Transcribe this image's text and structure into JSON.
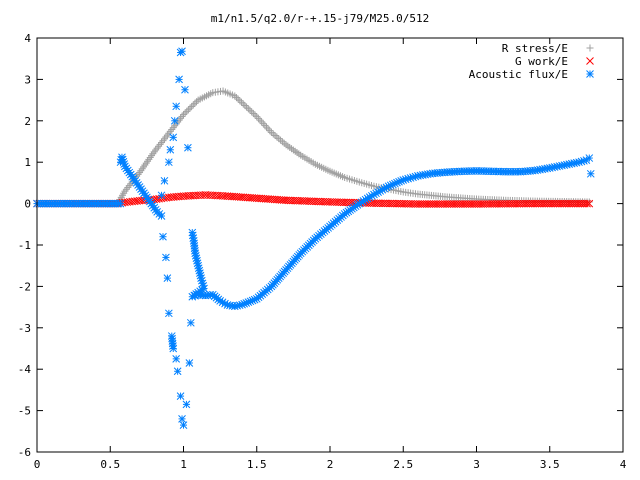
{
  "chart_data": {
    "type": "scatter",
    "title": "m1/n1.5/q2.0/r-+.15-j79/M25.0/512",
    "xlabel": "",
    "ylabel": "",
    "xlim": [
      0,
      4
    ],
    "ylim": [
      -6,
      4
    ],
    "xticks": [
      "0",
      "0.5",
      "1",
      "1.5",
      "2",
      "2.5",
      "3",
      "3.5",
      "4"
    ],
    "yticks": [
      "4",
      "3",
      "2",
      "1",
      "0",
      "-1",
      "-2",
      "-3",
      "-4",
      "-5",
      "-6"
    ],
    "grid": false,
    "legend_position": "top-right",
    "series": [
      {
        "name": "R stress/E",
        "marker": "plus",
        "color": "#a0a0a0",
        "points": [
          [
            0,
            0
          ],
          [
            0.55,
            0
          ],
          [
            0.6,
            0.3
          ],
          [
            0.7,
            0.75
          ],
          [
            0.8,
            1.25
          ],
          [
            0.9,
            1.7
          ],
          [
            1.0,
            2.15
          ],
          [
            1.1,
            2.5
          ],
          [
            1.2,
            2.68
          ],
          [
            1.27,
            2.72
          ],
          [
            1.35,
            2.6
          ],
          [
            1.5,
            2.1
          ],
          [
            1.6,
            1.72
          ],
          [
            1.7,
            1.42
          ],
          [
            1.8,
            1.17
          ],
          [
            1.9,
            0.95
          ],
          [
            2.0,
            0.78
          ],
          [
            2.1,
            0.63
          ],
          [
            2.2,
            0.52
          ],
          [
            2.3,
            0.42
          ],
          [
            2.4,
            0.35
          ],
          [
            2.5,
            0.28
          ],
          [
            2.6,
            0.23
          ],
          [
            2.8,
            0.16
          ],
          [
            3.0,
            0.11
          ],
          [
            3.2,
            0.08
          ],
          [
            3.4,
            0.06
          ],
          [
            3.6,
            0.05
          ],
          [
            3.77,
            0.04
          ]
        ]
      },
      {
        "name": "G work/E",
        "marker": "cross",
        "color": "#ff0000",
        "points": [
          [
            0,
            0
          ],
          [
            0.55,
            0
          ],
          [
            0.6,
            0.03
          ],
          [
            0.7,
            0.07
          ],
          [
            0.8,
            0.1
          ],
          [
            0.9,
            0.15
          ],
          [
            1.0,
            0.18
          ],
          [
            1.1,
            0.2
          ],
          [
            1.15,
            0.21
          ],
          [
            1.2,
            0.2
          ],
          [
            1.3,
            0.18
          ],
          [
            1.5,
            0.13
          ],
          [
            1.7,
            0.08
          ],
          [
            2.0,
            0.04
          ],
          [
            2.3,
            0.01
          ],
          [
            2.6,
            -0.01
          ],
          [
            3.0,
            -0.01
          ],
          [
            3.4,
            0.0
          ],
          [
            3.77,
            0.0
          ]
        ]
      },
      {
        "name": "Acoustic flux/E",
        "marker": "star",
        "color": "#0080ff",
        "points": [
          [
            0,
            0
          ],
          [
            0.57,
            0
          ],
          [
            0.57,
            1.0
          ],
          [
            0.58,
            1.12
          ],
          [
            0.6,
            0.9
          ],
          [
            0.62,
            0.8
          ],
          [
            0.66,
            0.6
          ],
          [
            0.7,
            0.4
          ],
          [
            0.74,
            0.2
          ],
          [
            0.78,
            0.0
          ],
          [
            0.82,
            -0.2
          ],
          [
            0.85,
            -0.3
          ],
          [
            0.85,
            0.2
          ],
          [
            0.86,
            -0.8
          ],
          [
            0.87,
            0.55
          ],
          [
            0.88,
            -1.3
          ],
          [
            0.89,
            -1.8
          ],
          [
            0.9,
            1.0
          ],
          [
            0.9,
            -2.65
          ],
          [
            0.91,
            1.3
          ],
          [
            0.92,
            -3.2
          ],
          [
            0.93,
            -3.5
          ],
          [
            0.93,
            1.6
          ],
          [
            0.94,
            2.0
          ],
          [
            0.95,
            -3.75
          ],
          [
            0.95,
            2.35
          ],
          [
            0.96,
            -4.05
          ],
          [
            0.97,
            3.0
          ],
          [
            0.98,
            -4.65
          ],
          [
            0.98,
            3.65
          ],
          [
            0.99,
            -5.2
          ],
          [
            0.99,
            3.68
          ],
          [
            1.0,
            -5.35
          ],
          [
            1.01,
            2.75
          ],
          [
            1.02,
            -4.85
          ],
          [
            1.03,
            1.35
          ],
          [
            1.04,
            -3.85
          ],
          [
            1.05,
            -2.88
          ],
          [
            1.06,
            -0.7
          ],
          [
            1.07,
            -0.9
          ],
          [
            1.08,
            -1.2
          ],
          [
            1.1,
            -1.5
          ],
          [
            1.12,
            -1.8
          ],
          [
            1.14,
            -2.05
          ],
          [
            1.06,
            -2.25
          ],
          [
            1.1,
            -2.2
          ],
          [
            1.15,
            -2.22
          ],
          [
            1.2,
            -2.2
          ],
          [
            1.25,
            -2.35
          ],
          [
            1.3,
            -2.45
          ],
          [
            1.35,
            -2.48
          ],
          [
            1.4,
            -2.44
          ],
          [
            1.5,
            -2.3
          ],
          [
            1.6,
            -2.0
          ],
          [
            1.7,
            -1.6
          ],
          [
            1.8,
            -1.2
          ],
          [
            1.9,
            -0.85
          ],
          [
            2.0,
            -0.55
          ],
          [
            2.1,
            -0.25
          ],
          [
            2.2,
            0.0
          ],
          [
            2.3,
            0.22
          ],
          [
            2.4,
            0.42
          ],
          [
            2.5,
            0.57
          ],
          [
            2.6,
            0.67
          ],
          [
            2.7,
            0.73
          ],
          [
            2.8,
            0.76
          ],
          [
            2.9,
            0.78
          ],
          [
            3.0,
            0.79
          ],
          [
            3.1,
            0.78
          ],
          [
            3.2,
            0.77
          ],
          [
            3.3,
            0.77
          ],
          [
            3.4,
            0.8
          ],
          [
            3.5,
            0.86
          ],
          [
            3.6,
            0.93
          ],
          [
            3.7,
            1.0
          ],
          [
            3.75,
            1.05
          ],
          [
            3.77,
            1.1
          ],
          [
            3.78,
            0.72
          ]
        ]
      }
    ]
  }
}
